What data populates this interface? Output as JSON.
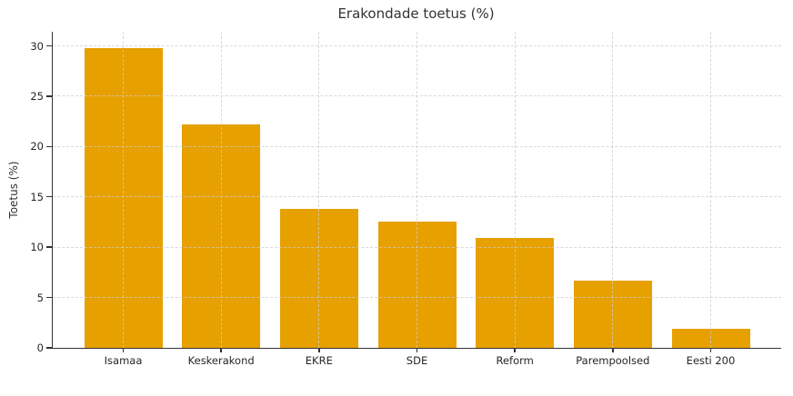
{
  "chart_data": {
    "type": "bar",
    "title": "Erakondade toetus (%)",
    "xlabel": "",
    "ylabel": "Toetus (%)",
    "categories": [
      "Isamaa",
      "Keskerakond",
      "EKRE",
      "SDE",
      "Reform",
      "Parempoolsed",
      "Eesti 200"
    ],
    "values": [
      29.8,
      22.2,
      13.8,
      12.5,
      10.9,
      6.7,
      1.9
    ],
    "yticks": [
      0,
      5,
      10,
      15,
      20,
      25,
      30
    ],
    "ylim": [
      0,
      31.4
    ],
    "grid": true,
    "grid_style": "dashed",
    "legend_position": "none",
    "bar_color": "#E6A000",
    "axis_color": "#333333",
    "tick_label_color": "#262626",
    "grid_color": "#cccccc",
    "background_color": "#ffffff"
  }
}
